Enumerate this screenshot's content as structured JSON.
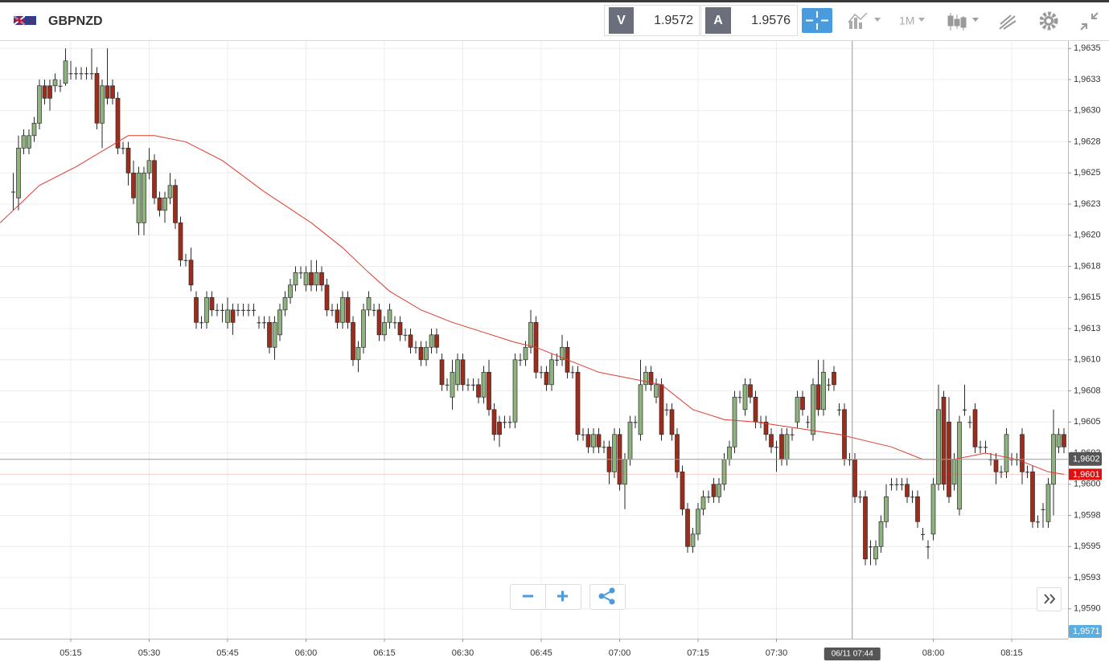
{
  "toolbar": {
    "symbol": "GBPNZD",
    "bid_label": "V",
    "bid": "1.9572",
    "ask_label": "A",
    "ask": "1.9576",
    "timeframe": "1M"
  },
  "chart_data": {
    "type": "candlestick",
    "title": "GBPNZD",
    "up_color": "#8fb37e",
    "down_color": "#9e2c1b",
    "grid": true,
    "xlim": [
      -2.54,
      201.77
    ],
    "ylim": [
      1.95876,
      1.96356
    ],
    "xticks": [
      {
        "value": 11,
        "label": "05:15"
      },
      {
        "value": 26,
        "label": "05:30"
      },
      {
        "value": 41,
        "label": "05:45"
      },
      {
        "value": 56,
        "label": "06:00"
      },
      {
        "value": 71,
        "label": "06:15"
      },
      {
        "value": 86,
        "label": "06:30"
      },
      {
        "value": 101,
        "label": "06:45"
      },
      {
        "value": 116,
        "label": "07:00"
      },
      {
        "value": 131,
        "label": "07:15"
      },
      {
        "value": 146,
        "label": "07:30"
      },
      {
        "value": 176,
        "label": "08:00"
      },
      {
        "value": 191,
        "label": "08:15"
      }
    ],
    "yticks": [
      {
        "value": 1.9635,
        "label": "1,9635"
      },
      {
        "value": 1.96325,
        "label": "1,9633"
      },
      {
        "value": 1.963,
        "label": "1,9630"
      },
      {
        "value": 1.96275,
        "label": "1,9628"
      },
      {
        "value": 1.9625,
        "label": "1,9625"
      },
      {
        "value": 1.96225,
        "label": "1,9623"
      },
      {
        "value": 1.962,
        "label": "1,9620"
      },
      {
        "value": 1.96175,
        "label": "1,9618"
      },
      {
        "value": 1.9615,
        "label": "1,9615"
      },
      {
        "value": 1.96125,
        "label": "1,9613"
      },
      {
        "value": 1.961,
        "label": "1,9610"
      },
      {
        "value": 1.96075,
        "label": "1,9608"
      },
      {
        "value": 1.9605,
        "label": "1,9605"
      },
      {
        "value": 1.96025,
        "label": "1,9603"
      },
      {
        "value": 1.96,
        "label": "1,9600"
      },
      {
        "value": 1.95975,
        "label": "1,9598"
      },
      {
        "value": 1.9595,
        "label": "1,9595"
      },
      {
        "value": 1.95925,
        "label": "1,9593"
      },
      {
        "value": 1.959,
        "label": "1,9590"
      }
    ],
    "open": [
      1.96235,
      1.9623,
      1.9627,
      1.9627,
      1.9628,
      1.9629,
      1.9632,
      1.9632,
      1.9632,
      1.9632,
      1.96322,
      1.9633,
      1.9633,
      1.9633,
      1.9633,
      1.9633,
      1.9633,
      1.9629,
      1.9632,
      1.9632,
      1.9631,
      1.9627,
      1.9627,
      1.9625,
      1.9621,
      1.9621,
      1.9625,
      1.9626,
      1.9623,
      1.9622,
      1.9623,
      1.9624,
      1.9621,
      1.9618,
      1.9618,
      1.9615,
      1.9613,
      1.9613,
      1.9615,
      1.9614,
      1.9614,
      1.9613,
      1.9614,
      1.9614,
      1.9614,
      1.9614,
      1.9614,
      1.9613,
      1.9613,
      1.9613,
      1.9611,
      1.9612,
      1.9614,
      1.9615,
      1.9616,
      1.9617,
      1.9616,
      1.9617,
      1.9616,
      1.9617,
      1.9616,
      1.9614,
      1.9614,
      1.9613,
      1.9615,
      1.9613,
      1.961,
      1.9611,
      1.9614,
      1.9614,
      1.9614,
      1.9612,
      1.9613,
      1.9613,
      1.9613,
      1.9612,
      1.9612,
      1.9611,
      1.9611,
      1.961,
      1.9611,
      1.9612,
      1.961,
      1.9608,
      1.9607,
      1.9608,
      1.961,
      1.9608,
      1.9608,
      1.9608,
      1.9607,
      1.9609,
      1.9606,
      1.9605,
      1.9605,
      1.9605,
      1.9605,
      1.961,
      1.961,
      1.9611,
      1.9613,
      1.9609,
      1.9609,
      1.9608,
      1.961,
      1.961,
      1.9611,
      1.9609,
      1.9609,
      1.9604,
      1.9604,
      1.9603,
      1.9604,
      1.9603,
      1.9603,
      1.9601,
      1.9604,
      1.96,
      1.9602,
      1.9605,
      1.9604,
      1.9608,
      1.9609,
      1.9607,
      1.9608,
      1.9606,
      1.9606,
      1.9604,
      1.9601,
      1.9598,
      1.9595,
      1.9596,
      1.9598,
      1.9599,
      1.96,
      1.9599,
      1.96,
      1.9602,
      1.9603,
      1.9607,
      1.9606,
      1.9608,
      1.9607,
      1.9605,
      1.9605,
      1.9604,
      1.9603,
      1.9604,
      1.9602,
      1.9604,
      1.9605,
      1.9607,
      1.9605,
      1.9604,
      1.9608,
      1.9606,
      1.9608,
      1.9609,
      1.9606,
      1.9606,
      1.9602,
      1.9602,
      1.9599,
      1.9599,
      1.9595,
      1.9594,
      1.9595,
      1.9597,
      1.96,
      1.96,
      1.96,
      1.96,
      1.9599,
      1.9599,
      1.9596,
      1.9595,
      1.9596,
      1.96,
      1.9607,
      1.9605,
      1.96,
      1.9598,
      1.9606,
      1.9605,
      1.9606,
      1.9603,
      1.9603,
      1.9602,
      1.9602,
      1.9601,
      1.9601,
      1.9602,
      1.9602,
      1.9604,
      1.9601,
      1.9601,
      1.9597,
      1.9598,
      1.9597,
      1.96,
      1.9603,
      1.9604
    ],
    "high": [
      1.9625,
      1.9628,
      1.96285,
      1.96285,
      1.96295,
      1.96325,
      1.96325,
      1.96325,
      1.9633,
      1.96325,
      1.9635,
      1.9634,
      1.96335,
      1.96335,
      1.96335,
      1.9635,
      1.96335,
      1.96325,
      1.9635,
      1.96325,
      1.96315,
      1.96275,
      1.96275,
      1.9626,
      1.96255,
      1.96255,
      1.9627,
      1.96265,
      1.96235,
      1.96235,
      1.9625,
      1.96245,
      1.96215,
      1.96185,
      1.9619,
      1.96155,
      1.96135,
      1.96155,
      1.96155,
      1.96145,
      1.96145,
      1.9615,
      1.96145,
      1.96145,
      1.96145,
      1.96145,
      1.96145,
      1.96135,
      1.96135,
      1.96135,
      1.96135,
      1.96145,
      1.96155,
      1.96165,
      1.96175,
      1.96175,
      1.96175,
      1.9618,
      1.9618,
      1.96175,
      1.96165,
      1.96145,
      1.96145,
      1.96155,
      1.96155,
      1.96135,
      1.96115,
      1.96145,
      1.96155,
      1.96145,
      1.96145,
      1.96135,
      1.96145,
      1.96135,
      1.96135,
      1.96125,
      1.96125,
      1.96115,
      1.96115,
      1.96115,
      1.96125,
      1.96125,
      1.96105,
      1.96085,
      1.961,
      1.96105,
      1.96105,
      1.96085,
      1.96085,
      1.96085,
      1.96095,
      1.961,
      1.96065,
      1.96055,
      1.96055,
      1.96055,
      1.96105,
      1.96105,
      1.96115,
      1.9614,
      1.96135,
      1.96095,
      1.96095,
      1.96105,
      1.96105,
      1.9612,
      1.96115,
      1.96095,
      1.96095,
      1.96045,
      1.96045,
      1.96045,
      1.96045,
      1.96035,
      1.96035,
      1.96045,
      1.96045,
      1.96025,
      1.96055,
      1.96055,
      1.961,
      1.96095,
      1.96095,
      1.96085,
      1.96085,
      1.96065,
      1.96065,
      1.96045,
      1.96015,
      1.95985,
      1.95965,
      1.95985,
      1.95995,
      1.95995,
      1.96005,
      1.96005,
      1.96025,
      1.96035,
      1.96075,
      1.96075,
      1.96085,
      1.96085,
      1.96075,
      1.96055,
      1.96055,
      1.96045,
      1.96035,
      1.96045,
      1.96045,
      1.96045,
      1.96075,
      1.96075,
      1.96055,
      1.96085,
      1.961,
      1.961,
      1.96085,
      1.96095,
      1.96065,
      1.96065,
      1.96025,
      1.96025,
      1.95995,
      1.95995,
      1.95955,
      1.95955,
      1.95975,
      1.96,
      1.96005,
      1.96005,
      1.96005,
      1.96005,
      1.95995,
      1.95995,
      1.95965,
      1.95955,
      1.96005,
      1.9608,
      1.96075,
      1.9607,
      1.96025,
      1.96055,
      1.9608,
      1.96055,
      1.96065,
      1.96035,
      1.96035,
      1.96025,
      1.96025,
      1.96015,
      1.96045,
      1.96025,
      1.96025,
      1.96045,
      1.96015,
      1.96015,
      1.95975,
      1.95985,
      1.96005,
      1.9606,
      1.96045,
      1.96045
    ],
    "low": [
      1.9622,
      1.9622,
      1.96265,
      1.96265,
      1.96275,
      1.96285,
      1.96305,
      1.963,
      1.96315,
      1.96315,
      1.9632,
      1.96325,
      1.96325,
      1.96325,
      1.96325,
      1.96325,
      1.96285,
      1.9627,
      1.96305,
      1.96305,
      1.96265,
      1.96265,
      1.9624,
      1.96225,
      1.962,
      1.962,
      1.96245,
      1.96225,
      1.96215,
      1.9621,
      1.96225,
      1.96205,
      1.96175,
      1.96175,
      1.96155,
      1.96125,
      1.96125,
      1.96125,
      1.96135,
      1.96135,
      1.9613,
      1.96125,
      1.9612,
      1.96135,
      1.96135,
      1.96135,
      1.96135,
      1.96125,
      1.96125,
      1.96105,
      1.961,
      1.96115,
      1.96135,
      1.96145,
      1.96155,
      1.96165,
      1.96155,
      1.96155,
      1.96155,
      1.96155,
      1.96135,
      1.96135,
      1.96125,
      1.96125,
      1.96125,
      1.96095,
      1.9609,
      1.96105,
      1.96135,
      1.96135,
      1.96115,
      1.96115,
      1.96125,
      1.96125,
      1.96115,
      1.96115,
      1.96105,
      1.96105,
      1.96095,
      1.96095,
      1.96105,
      1.96105,
      1.96075,
      1.96075,
      1.9606,
      1.96075,
      1.96075,
      1.96075,
      1.96075,
      1.96065,
      1.96065,
      1.96055,
      1.96035,
      1.9603,
      1.96045,
      1.96045,
      1.96045,
      1.96095,
      1.96095,
      1.96105,
      1.96085,
      1.96085,
      1.96075,
      1.96075,
      1.96095,
      1.96095,
      1.96085,
      1.96085,
      1.96035,
      1.96035,
      1.96025,
      1.96025,
      1.96025,
      1.96025,
      1.96,
      1.96005,
      1.95995,
      1.9598,
      1.96015,
      1.96045,
      1.96035,
      1.96075,
      1.96075,
      1.96065,
      1.96035,
      1.96055,
      1.96035,
      1.96005,
      1.95975,
      1.95945,
      1.95945,
      1.95955,
      1.95975,
      1.95985,
      1.95985,
      1.95985,
      1.95995,
      1.96015,
      1.96025,
      1.96065,
      1.96055,
      1.96065,
      1.96045,
      1.96045,
      1.96035,
      1.96025,
      1.9601,
      1.96015,
      1.96015,
      1.96035,
      1.96045,
      1.96055,
      1.96045,
      1.96035,
      1.96055,
      1.96055,
      1.96075,
      1.96075,
      1.96055,
      1.96015,
      1.96015,
      1.95985,
      1.95985,
      1.95935,
      1.95935,
      1.95935,
      1.95945,
      1.95965,
      1.95995,
      1.95995,
      1.95995,
      1.95985,
      1.95985,
      1.95965,
      1.95955,
      1.9594,
      1.95955,
      1.95995,
      1.95995,
      1.95985,
      1.95995,
      1.95975,
      1.96055,
      1.96045,
      1.96025,
      1.96025,
      1.96025,
      1.96015,
      1.96,
      1.96005,
      1.96005,
      1.96015,
      1.96015,
      1.96,
      1.96005,
      1.95965,
      1.95965,
      1.95965,
      1.95965,
      1.95975,
      1.96025,
      1.96025
    ],
    "close": [
      1.96235,
      1.9627,
      1.9628,
      1.9628,
      1.9629,
      1.9632,
      1.9631,
      1.9631,
      1.96325,
      1.9632,
      1.9634,
      1.9633,
      1.9633,
      1.9633,
      1.9633,
      1.9633,
      1.9629,
      1.9632,
      1.9631,
      1.9631,
      1.9627,
      1.9627,
      1.9625,
      1.9623,
      1.9625,
      1.9625,
      1.9626,
      1.9623,
      1.9622,
      1.9623,
      1.9624,
      1.9621,
      1.9618,
      1.9618,
      1.9616,
      1.9613,
      1.9613,
      1.9615,
      1.9614,
      1.9614,
      1.9614,
      1.9614,
      1.9613,
      1.9614,
      1.9614,
      1.9614,
      1.9614,
      1.9613,
      1.9613,
      1.9611,
      1.9613,
      1.9614,
      1.9615,
      1.9616,
      1.9617,
      1.9617,
      1.9617,
      1.9616,
      1.9617,
      1.9616,
      1.9614,
      1.9614,
      1.9613,
      1.9615,
      1.9613,
      1.961,
      1.9611,
      1.9614,
      1.9615,
      1.9614,
      1.9612,
      1.9613,
      1.9614,
      1.9613,
      1.9612,
      1.9612,
      1.9611,
      1.9611,
      1.961,
      1.9611,
      1.9612,
      1.9611,
      1.9608,
      1.9608,
      1.9609,
      1.961,
      1.9608,
      1.9608,
      1.9608,
      1.9607,
      1.9609,
      1.9606,
      1.9604,
      1.9604,
      1.9605,
      1.9605,
      1.961,
      1.961,
      1.9611,
      1.9613,
      1.9609,
      1.9609,
      1.9608,
      1.961,
      1.961,
      1.9611,
      1.9609,
      1.9609,
      1.9604,
      1.9604,
      1.9603,
      1.9604,
      1.9603,
      1.9603,
      1.9601,
      1.9604,
      1.96,
      1.9602,
      1.9605,
      1.9605,
      1.9608,
      1.9609,
      1.9608,
      1.9608,
      1.9604,
      1.9606,
      1.9604,
      1.9601,
      1.9598,
      1.9595,
      1.9596,
      1.9598,
      1.9599,
      1.9599,
      1.9599,
      1.96,
      1.9602,
      1.9603,
      1.9607,
      1.9607,
      1.9608,
      1.9607,
      1.9605,
      1.9605,
      1.9604,
      1.9603,
      1.9603,
      1.9602,
      1.9604,
      1.9604,
      1.9607,
      1.9606,
      1.9605,
      1.9608,
      1.9606,
      1.9609,
      1.9608,
      1.9608,
      1.9606,
      1.9602,
      1.9602,
      1.9599,
      1.9599,
      1.9594,
      1.9595,
      1.9595,
      1.9597,
      1.9599,
      1.96,
      1.96,
      1.96,
      1.9599,
      1.9599,
      1.9597,
      1.9596,
      1.9595,
      1.96,
      1.9606,
      1.96,
      1.9599,
      1.9602,
      1.9605,
      1.9606,
      1.9605,
      1.9603,
      1.9603,
      1.9603,
      1.9602,
      1.9601,
      1.9601,
      1.9604,
      1.9602,
      1.9602,
      1.9601,
      1.9601,
      1.9597,
      1.9597,
      1.9598,
      1.96,
      1.9604,
      1.9604,
      1.9603
    ],
    "ma": {
      "color": "#e03a2e",
      "x": [
        -2.5,
        5,
        12,
        18,
        22,
        27,
        33,
        40,
        48,
        57,
        63,
        68,
        72,
        78,
        84,
        90,
        96,
        100,
        106,
        112,
        118,
        124,
        130,
        136,
        142,
        150,
        158,
        163,
        168,
        174,
        180,
        186,
        192,
        198,
        201
      ],
      "values": [
        1.9621,
        1.9624,
        1.96255,
        1.9627,
        1.9628,
        1.9628,
        1.96275,
        1.9626,
        1.96235,
        1.9621,
        1.9619,
        1.9617,
        1.96155,
        1.9614,
        1.9613,
        1.96122,
        1.96114,
        1.9611,
        1.961,
        1.9609,
        1.96085,
        1.9608,
        1.9606,
        1.96052,
        1.9605,
        1.96045,
        1.9604,
        1.96035,
        1.9603,
        1.9602,
        1.9602,
        1.96025,
        1.9602,
        1.9601,
        1.96008
      ]
    },
    "crosshair": {
      "x": 160.5,
      "y": 1.9602,
      "x_label": "06/11 07:44",
      "y_label": "1,9602"
    },
    "current_price": {
      "value": 1.96008,
      "label": "1,9601"
    },
    "offscale_label": "1,9571"
  }
}
